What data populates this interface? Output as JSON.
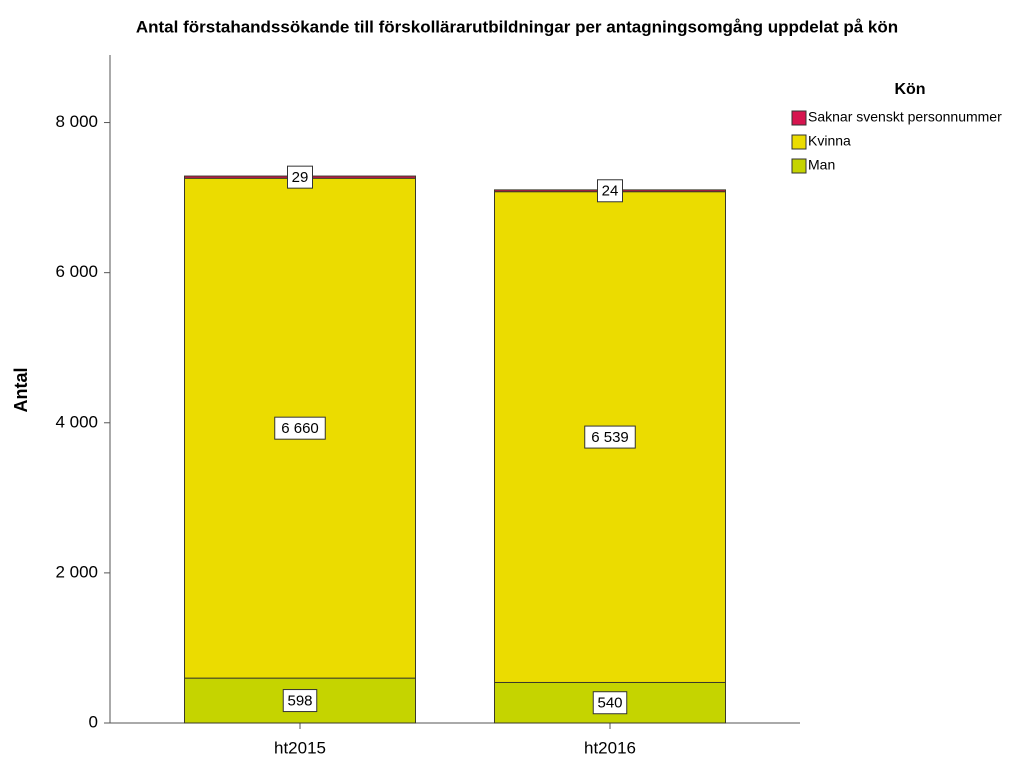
{
  "chart_data": {
    "type": "stacked_bar",
    "title": "Antal förstahandssökande till förskollärarutbildningar per antagningsomgång uppdelat på kön",
    "y_label": "Antal",
    "legend_title": "Kön",
    "categories": [
      "ht2015",
      "ht2016"
    ],
    "series": [
      {
        "name": "Man",
        "color": "#c5d400",
        "values": [
          598,
          540
        ],
        "value_labels": [
          "598",
          "540"
        ]
      },
      {
        "name": "Kvinna",
        "color": "#ebdc00",
        "values": [
          6660,
          6539
        ],
        "value_labels": [
          "6 660",
          "6 539"
        ]
      },
      {
        "name": "Saknar svenskt personnummer",
        "color": "#d6154f",
        "values": [
          29,
          24
        ],
        "value_labels": [
          "29",
          "24"
        ]
      }
    ],
    "ylim": [
      0,
      8900
    ],
    "yticks": [
      0,
      {
        "value": 2000,
        "label": "2 000"
      },
      {
        "value": 4000,
        "label": "4 000"
      },
      {
        "value": 6000,
        "label": "6 000"
      },
      {
        "value": 8000,
        "label": "8 000"
      }
    ],
    "legend": "right"
  }
}
